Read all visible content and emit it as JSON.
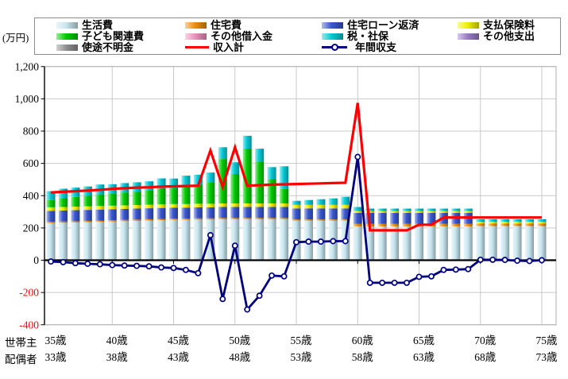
{
  "unit_label": "(万円)",
  "axis": {
    "x_row1_label": "世帯主",
    "x_row2_label": "配偶者",
    "y_ticks": [
      {
        "label": "1,200",
        "value": 1200
      },
      {
        "label": "1,000",
        "value": 1000
      },
      {
        "label": "800",
        "value": 800
      },
      {
        "label": "600",
        "value": 600
      },
      {
        "label": "400",
        "value": 400
      },
      {
        "label": "200",
        "value": 200
      },
      {
        "label": "0",
        "value": 0
      },
      {
        "label": "-200",
        "value": -200
      },
      {
        "label": "-400",
        "value": -400
      }
    ],
    "x_ticks": [
      {
        "householder": "35歳",
        "spouse": "33歳",
        "age": 35
      },
      {
        "householder": "40歳",
        "spouse": "38歳",
        "age": 40
      },
      {
        "householder": "45歳",
        "spouse": "43歳",
        "age": 45
      },
      {
        "householder": "50歳",
        "spouse": "48歳",
        "age": 50
      },
      {
        "householder": "55歳",
        "spouse": "53歳",
        "age": 55
      },
      {
        "householder": "60歳",
        "spouse": "58歳",
        "age": 60
      },
      {
        "householder": "65歳",
        "spouse": "63歳",
        "age": 65
      },
      {
        "householder": "70歳",
        "spouse": "68歳",
        "age": 70
      },
      {
        "householder": "75歳",
        "spouse": "73歳",
        "age": 75
      }
    ]
  },
  "colors": {
    "grid": "#c9c9c9",
    "plot_border": "#b0b0b0",
    "axis_line": "#000000",
    "negative_tick_label": "#ff0000"
  },
  "chart_data": {
    "type": "bar",
    "subtype": "stacked-bars-with-overlay-lines",
    "unit": "万円",
    "ylim": [
      -400,
      1200
    ],
    "y_step": 200,
    "grid": true,
    "legend_position": "top",
    "ages": [
      35,
      36,
      37,
      38,
      39,
      40,
      41,
      42,
      43,
      44,
      45,
      46,
      47,
      48,
      49,
      50,
      51,
      52,
      53,
      54,
      55,
      56,
      57,
      58,
      59,
      60,
      61,
      62,
      63,
      64,
      65,
      66,
      67,
      68,
      69,
      70,
      71,
      72,
      73,
      74,
      75
    ],
    "series": [
      {
        "name": "生活費",
        "color": "#c7e6ef",
        "values": [
          230,
          232,
          234,
          236,
          238,
          240,
          242,
          244,
          246,
          248,
          250,
          250,
          252,
          252,
          254,
          254,
          254,
          254,
          254,
          254,
          245,
          245,
          245,
          245,
          245,
          210,
          210,
          210,
          210,
          210,
          210,
          210,
          210,
          210,
          210,
          212,
          212,
          212,
          212,
          212,
          212
        ]
      },
      {
        "name": "住宅費",
        "color": "#ee8e0d",
        "values": [
          8,
          8,
          8,
          8,
          8,
          8,
          8,
          8,
          8,
          8,
          8,
          8,
          8,
          8,
          8,
          8,
          8,
          8,
          8,
          8,
          8,
          8,
          8,
          8,
          8,
          15,
          15,
          15,
          15,
          15,
          15,
          15,
          15,
          15,
          15,
          15,
          15,
          15,
          15,
          15,
          15
        ]
      },
      {
        "name": "住宅ローン返済",
        "color": "#3a57d0",
        "values": [
          68,
          68,
          68,
          68,
          68,
          68,
          68,
          68,
          68,
          68,
          68,
          68,
          68,
          68,
          68,
          68,
          68,
          68,
          68,
          68,
          68,
          68,
          68,
          68,
          68,
          68,
          68,
          68,
          68,
          68,
          68,
          68,
          68,
          68,
          68,
          0,
          0,
          0,
          0,
          0,
          0
        ]
      },
      {
        "name": "支払保険料",
        "color": "#f0f000",
        "values": [
          22,
          22,
          22,
          22,
          22,
          22,
          22,
          22,
          22,
          22,
          22,
          22,
          22,
          22,
          22,
          22,
          22,
          22,
          22,
          22,
          22,
          22,
          22,
          22,
          22,
          12,
          12,
          12,
          12,
          12,
          12,
          12,
          12,
          12,
          12,
          12,
          12,
          12,
          12,
          12,
          12
        ]
      },
      {
        "name": "子ども関連費",
        "color": "#00cc00",
        "values": [
          45,
          55,
          60,
          65,
          72,
          75,
          80,
          83,
          87,
          100,
          100,
          115,
          118,
          130,
          275,
          182,
          340,
          260,
          150,
          90,
          0,
          0,
          0,
          0,
          0,
          0,
          0,
          0,
          0,
          0,
          0,
          0,
          0,
          0,
          0,
          0,
          0,
          0,
          0,
          0,
          0
        ]
      },
      {
        "name": "その他借入金",
        "color": "#f290be",
        "values": [
          0,
          0,
          0,
          0,
          0,
          0,
          0,
          0,
          0,
          0,
          0,
          0,
          0,
          0,
          0,
          0,
          0,
          0,
          0,
          0,
          0,
          0,
          0,
          0,
          0,
          0,
          0,
          0,
          0,
          0,
          0,
          0,
          0,
          0,
          0,
          0,
          0,
          0,
          0,
          0,
          0
        ]
      },
      {
        "name": "税・社保",
        "color": "#00cbd6",
        "values": [
          55,
          58,
          58,
          58,
          61,
          58,
          58,
          58,
          58,
          61,
          58,
          61,
          62,
          63,
          73,
          73,
          79,
          79,
          75,
          140,
          25,
          30,
          35,
          40,
          50,
          25,
          15,
          15,
          15,
          15,
          15,
          15,
          15,
          15,
          15,
          15,
          15,
          15,
          15,
          15,
          15
        ]
      },
      {
        "name": "その他支出",
        "color": "#9b7ec8",
        "values": [
          0,
          0,
          0,
          0,
          0,
          0,
          0,
          0,
          0,
          0,
          0,
          0,
          0,
          0,
          0,
          0,
          0,
          0,
          0,
          0,
          0,
          0,
          0,
          0,
          0,
          0,
          0,
          0,
          0,
          0,
          0,
          0,
          0,
          0,
          0,
          0,
          0,
          0,
          0,
          0,
          0
        ]
      },
      {
        "name": "使途不明金",
        "color": "#8f8f8f",
        "values": [
          0,
          0,
          0,
          0,
          0,
          0,
          0,
          0,
          0,
          0,
          0,
          0,
          0,
          0,
          0,
          0,
          0,
          0,
          0,
          0,
          0,
          0,
          0,
          0,
          0,
          0,
          0,
          0,
          0,
          0,
          0,
          0,
          0,
          0,
          0,
          0,
          0,
          0,
          0,
          0,
          0
        ]
      }
    ],
    "lines": [
      {
        "name": "収入計",
        "color": "#ff0000",
        "marker": false,
        "values": [
          420,
          424,
          428,
          432,
          436,
          442,
          446,
          450,
          452,
          456,
          458,
          460,
          462,
          680,
          455,
          700,
          462,
          465,
          468,
          470,
          472,
          474,
          476,
          478,
          480,
          975,
          185,
          185,
          185,
          185,
          220,
          220,
          265,
          265,
          265,
          265,
          265,
          265,
          265,
          265,
          265
        ]
      },
      {
        "name": "年間収支",
        "color": "#000080",
        "marker": true,
        "values": [
          -8,
          -12,
          -18,
          -22,
          -25,
          -30,
          -33,
          -35,
          -38,
          -45,
          -48,
          -60,
          -80,
          155,
          -240,
          90,
          -305,
          -220,
          -95,
          -100,
          112,
          115,
          115,
          118,
          118,
          640,
          -140,
          -140,
          -140,
          -140,
          -103,
          -100,
          -60,
          -58,
          -55,
          3,
          3,
          2,
          -3,
          -5,
          0
        ]
      }
    ]
  }
}
